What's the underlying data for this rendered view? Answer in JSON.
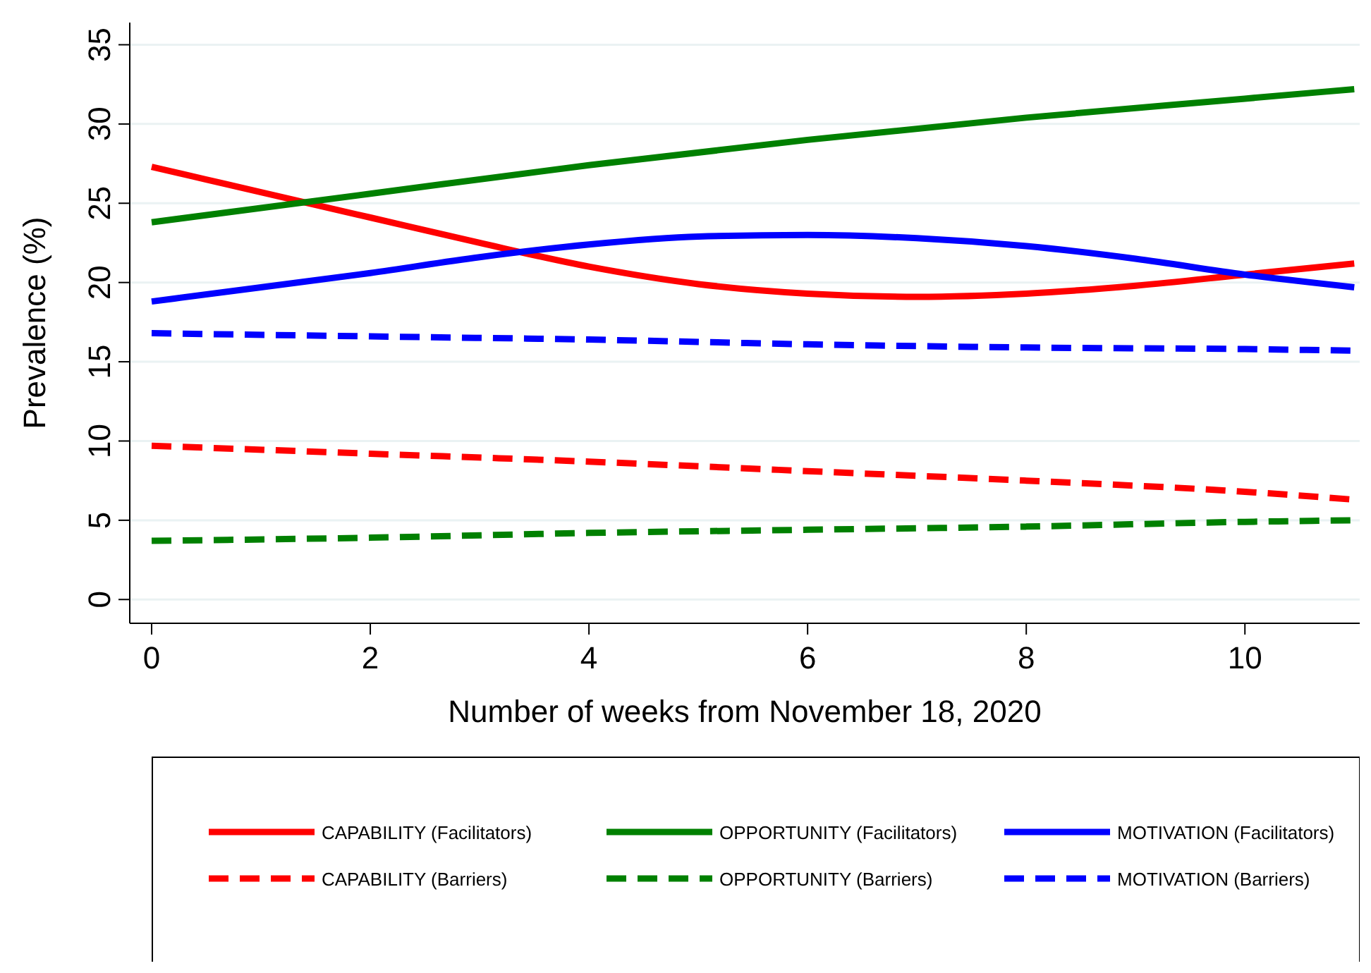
{
  "chart_data": {
    "type": "line",
    "xlabel": "Number of weeks from November 18, 2020",
    "ylabel": "Prevalence (%)",
    "xlim": [
      -0.2,
      11.05
    ],
    "xticks": [
      0,
      2,
      4,
      6,
      8,
      10
    ],
    "ylim": [
      -1.5,
      36.4
    ],
    "yticks": [
      0,
      5,
      10,
      15,
      20,
      25,
      30,
      35
    ],
    "grid": "y",
    "legend": "bottom",
    "marker": "none",
    "series": [
      {
        "name": "CAPABILITY (Facilitators)",
        "color": "#ff0000",
        "line_style": "solid",
        "x": [
          0,
          1,
          2,
          3,
          4,
          5,
          6,
          7,
          8,
          9,
          10,
          11
        ],
        "values": [
          27.3,
          25.7,
          24.1,
          22.5,
          21.0,
          19.9,
          19.3,
          19.1,
          19.3,
          19.8,
          20.5,
          21.2
        ]
      },
      {
        "name": "OPPORTUNITY (Facilitators)",
        "color": "#008000",
        "line_style": "solid",
        "x": [
          0,
          2,
          4,
          6,
          8,
          10,
          11
        ],
        "values": [
          23.8,
          25.6,
          27.4,
          29.0,
          30.4,
          31.6,
          32.2
        ]
      },
      {
        "name": "MOTIVATION (Facilitators)",
        "color": "#0000ff",
        "line_style": "solid",
        "x": [
          0,
          1,
          2,
          3,
          4,
          5,
          6,
          7,
          8,
          9,
          10,
          11
        ],
        "values": [
          18.8,
          19.7,
          20.6,
          21.6,
          22.4,
          22.9,
          23.0,
          22.8,
          22.3,
          21.5,
          20.5,
          19.7
        ]
      },
      {
        "name": "CAPABILITY (Barriers)",
        "color": "#ff0000",
        "line_style": "dashed",
        "x": [
          0,
          2,
          4,
          6,
          8,
          10,
          11
        ],
        "values": [
          9.7,
          9.2,
          8.7,
          8.1,
          7.5,
          6.8,
          6.3
        ]
      },
      {
        "name": "OPPORTUNITY (Barriers)",
        "color": "#008000",
        "line_style": "dashed",
        "x": [
          0,
          2,
          4,
          6,
          8,
          10,
          11
        ],
        "values": [
          3.7,
          3.9,
          4.2,
          4.4,
          4.6,
          4.9,
          5.0
        ]
      },
      {
        "name": "MOTIVATION (Barriers)",
        "color": "#0000ff",
        "line_style": "dashed",
        "x": [
          0,
          2,
          4,
          6,
          8,
          10,
          11
        ],
        "values": [
          16.8,
          16.6,
          16.4,
          16.1,
          15.9,
          15.8,
          15.7
        ]
      }
    ]
  }
}
